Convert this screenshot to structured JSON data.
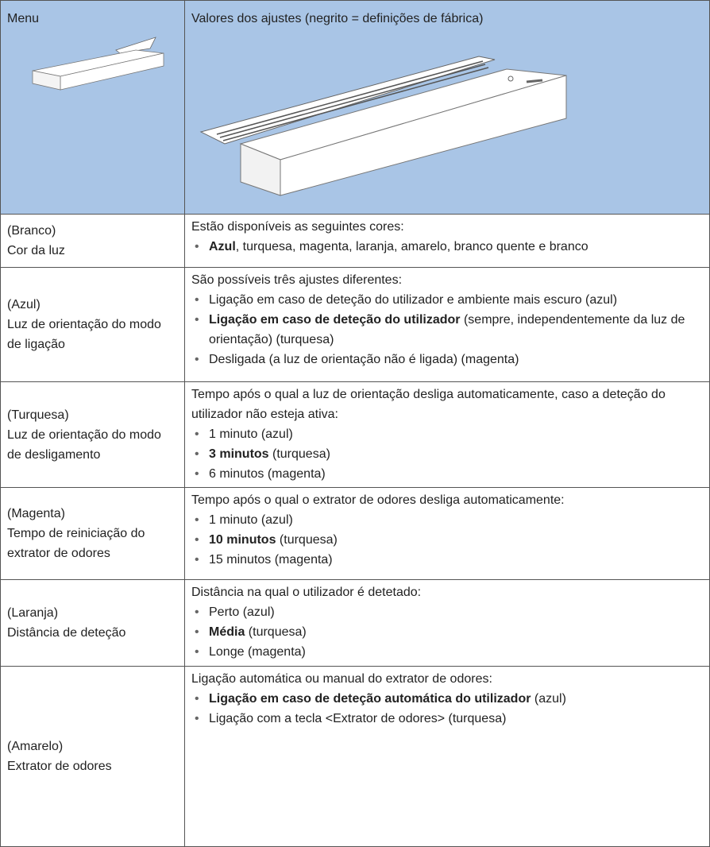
{
  "table": {
    "header": [
      "Menu",
      "Valores dos ajustes (negrito = definições de fábrica)"
    ],
    "rows": [
      {
        "menu": [
          "(Branco)",
          "Cor da luz"
        ],
        "intro": "Estão disponíveis as seguintes cores:",
        "items": [
          {
            "bold": "Azul",
            "text": ", turquesa, magenta, laranja, amarelo, branco quente e branco"
          }
        ]
      },
      {
        "menu": [
          "(Azul)",
          "Luz de orientação do modo de ligação"
        ],
        "intro": "São possíveis três ajustes diferentes:",
        "items": [
          {
            "text": "Ligação em caso de deteção do utilizador e ambiente mais escuro (azul)"
          },
          {
            "bold": "Ligação em caso de deteção do utilizador",
            "text": " (sempre, independentemente da luz de orientação) (turquesa)"
          },
          {
            "text": "Desligada (a luz de orientação não é ligada) (magenta)"
          }
        ]
      },
      {
        "menu": [
          "(Turquesa)",
          "Luz de orientação do modo de desligamento"
        ],
        "intro": "Tempo após o qual a luz de orientação desliga automaticamente, caso a deteção do utilizador não esteja ativa:",
        "items": [
          {
            "text": "1 minuto (azul)"
          },
          {
            "bold": "3 minutos",
            "text": " (turquesa)"
          },
          {
            "text": "6 minutos (magenta)"
          }
        ]
      },
      {
        "menu": [
          "(Magenta)",
          "Tempo de reiniciação do extrator de odores"
        ],
        "intro": "Tempo após o qual o extrator de odores desliga automaticamente:",
        "items": [
          {
            "text": "1 minuto (azul)"
          },
          {
            "bold": "10 minutos",
            "text": " (turquesa)"
          },
          {
            "text": "15 minutos (magenta)"
          }
        ]
      },
      {
        "menu": [
          "(Laranja)",
          "Distância de deteção"
        ],
        "intro": "Distância na qual o utilizador é detetado:",
        "items": [
          {
            "text": "Perto (azul)"
          },
          {
            "bold": "Média",
            "text": " (turquesa)"
          },
          {
            "text": "Longe (magenta)"
          }
        ]
      },
      {
        "menu": [
          "(Amarelo)",
          "Extrator de odores"
        ],
        "intro": "Ligação automática ou manual do extrator de odores:",
        "items": [
          {
            "bold": "Ligação em caso de deteção automática do utilizador",
            "text": " (azul)"
          },
          {
            "text": "Ligação com a tecla <Extrator de odores> (turquesa)"
          }
        ]
      }
    ]
  }
}
